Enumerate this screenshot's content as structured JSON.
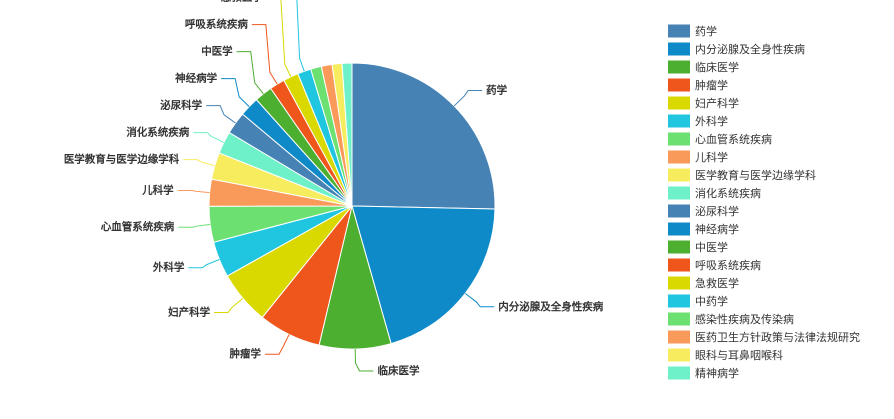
{
  "chart_data": {
    "type": "pie",
    "categories": [
      "药学",
      "内分泌腺及全身性疾病",
      "临床医学",
      "肿瘤学",
      "妇产科学",
      "外科学",
      "心血管系统疾病",
      "儿科学",
      "医学教育与医学边缘学科",
      "消化系统疾病",
      "泌尿科学",
      "神经病学",
      "中医学",
      "呼吸系统疾病",
      "急救医学",
      "中药学",
      "感染性疾病及传染病",
      "医药卫生方针政策与法律法规研究",
      "眼科与耳鼻咽喉科",
      "精神病学"
    ],
    "values": [
      25,
      20,
      8,
      7,
      6,
      4,
      4,
      3,
      3,
      2.5,
      2.5,
      2.2,
      2,
      1.7,
      1.7,
      1.5,
      1.2,
      1.2,
      1.1,
      1.1
    ],
    "colors": [
      "#4682b4",
      "#0e8ac8",
      "#4daf30",
      "#ef561c",
      "#d9d900",
      "#20c5e0",
      "#6ce070",
      "#fa9a5a",
      "#f7ec5e",
      "#6ef0c8",
      "#4682b4",
      "#0e8ac8",
      "#4daf30",
      "#ef561c",
      "#d9d900",
      "#20c5e0",
      "#6ce070",
      "#fa9a5a",
      "#f7ec5e",
      "#6ef0c8"
    ],
    "label_min_value": 1.5,
    "legend": "right"
  }
}
